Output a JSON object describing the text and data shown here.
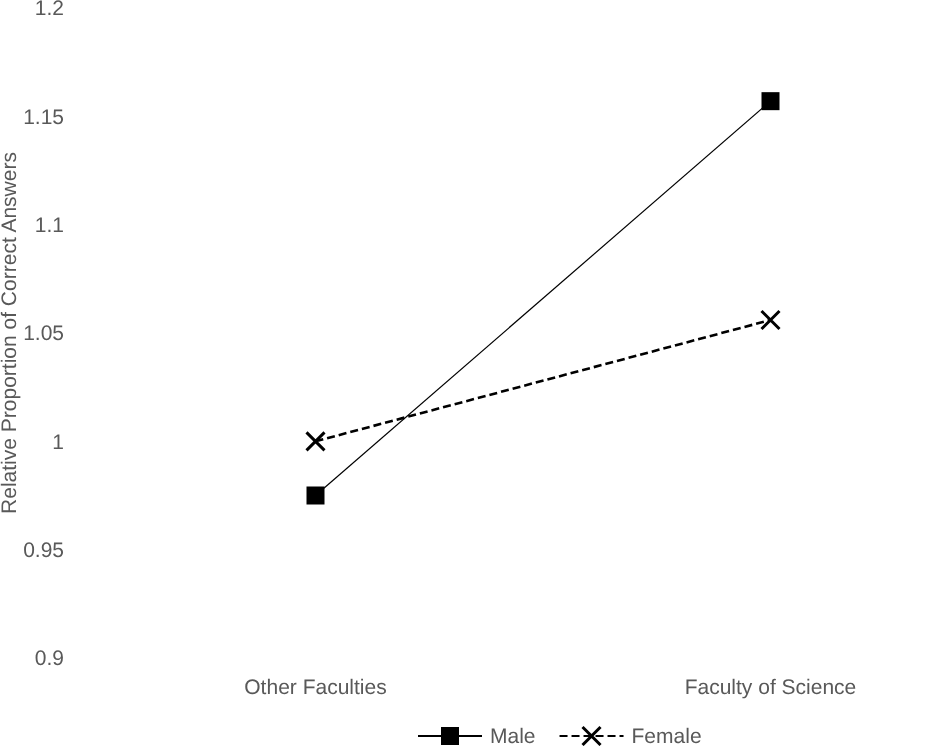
{
  "chart_data": {
    "type": "line",
    "ylabel": "Relative Proportion of Correct Answers",
    "categories": [
      "Other Faculties",
      "Faculty of Science"
    ],
    "series": [
      {
        "name": "Male",
        "color": "#000000",
        "values": [
          0.975,
          1.157
        ],
        "marker": "square",
        "line_style": "solid"
      },
      {
        "name": "Female",
        "color": "#000000",
        "values": [
          1.0,
          1.056
        ],
        "marker": "cross",
        "line_style": "dashed"
      }
    ],
    "ylim": [
      0.9,
      1.2
    ],
    "yticks": [
      0.9,
      0.95,
      1,
      1.05,
      1.1,
      1.15,
      1.2
    ],
    "grid": false,
    "legend": "bottom"
  }
}
